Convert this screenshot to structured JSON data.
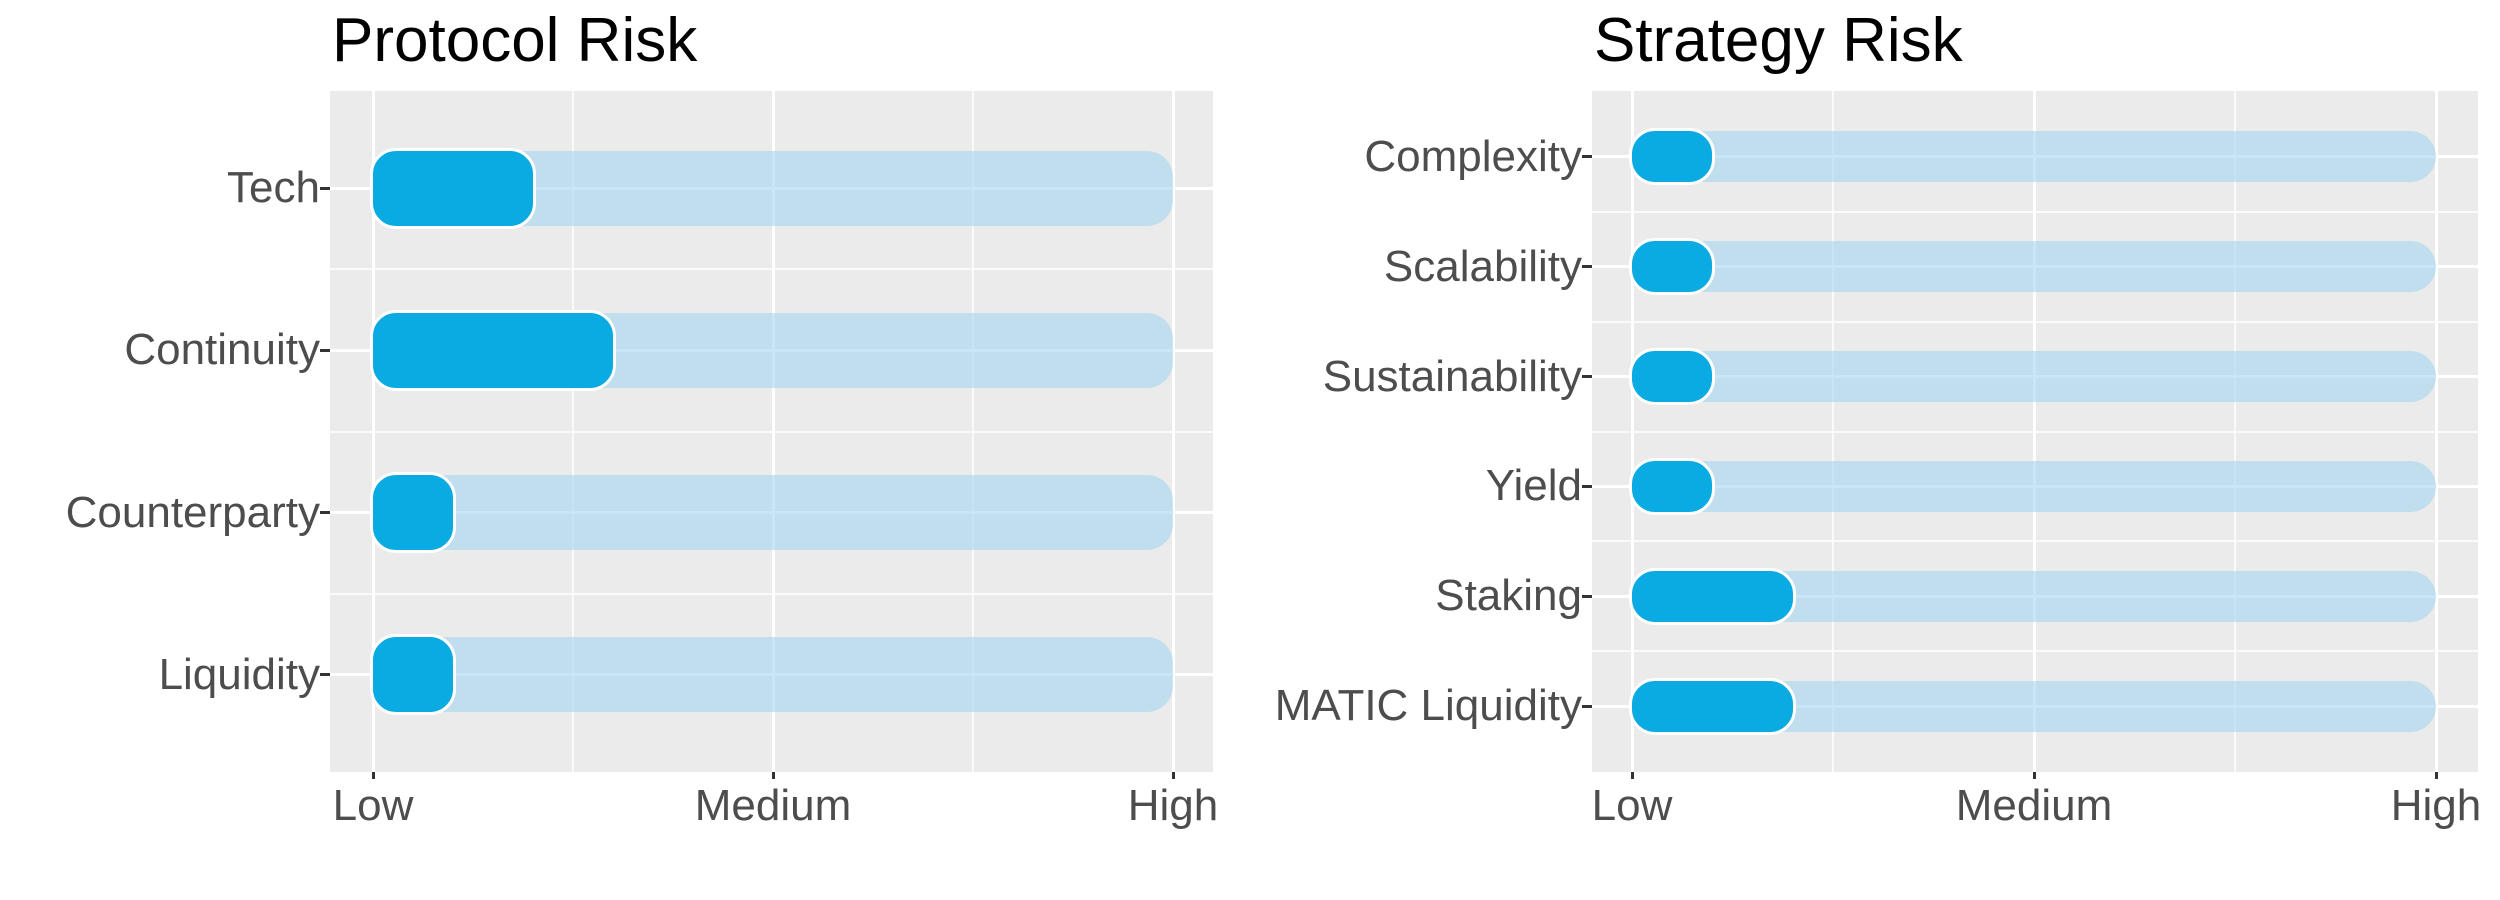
{
  "style": {
    "panel_background": "#EBEBEB",
    "grid_major_color": "#FFFFFF",
    "grid_minor_color": "rgba(255,255,255,0.75)",
    "bar_color": "#0AAAE2",
    "bar_track_color": "rgba(167,215,241,0.62)",
    "bar_track_solid_hint": "#C3E2EF",
    "label_color": "#4D4D4D",
    "title_color": "#000000",
    "tick_color": "#333333"
  },
  "chart_data": [
    {
      "type": "bar",
      "orientation": "horizontal",
      "title": "Protocol Risk",
      "categories": [
        "Tech",
        "Continuity",
        "Counterparty",
        "Liquidity"
      ],
      "values": [
        1.4,
        1.6,
        1.2,
        1.2
      ],
      "track_value": 3,
      "xlim": [
        1,
        3
      ],
      "x_ticks": [
        {
          "value": 1,
          "label": "Low"
        },
        {
          "value": 2,
          "label": "Medium"
        },
        {
          "value": 3,
          "label": "High"
        }
      ],
      "x_minor_ticks": [
        1.5,
        2.5
      ],
      "xlabel": "",
      "ylabel": "",
      "grid": true,
      "legend": false
    },
    {
      "type": "bar",
      "orientation": "horizontal",
      "title": "Strategy Risk",
      "categories": [
        "Complexity",
        "Scalability",
        "Sustainability",
        "Yield",
        "Staking",
        "MATIC Liquidity"
      ],
      "values": [
        1.2,
        1.2,
        1.2,
        1.2,
        1.4,
        1.4
      ],
      "track_value": 3,
      "xlim": [
        1,
        3
      ],
      "x_ticks": [
        {
          "value": 1,
          "label": "Low"
        },
        {
          "value": 2,
          "label": "Medium"
        },
        {
          "value": 3,
          "label": "High"
        }
      ],
      "x_minor_ticks": [
        1.5,
        2.5
      ],
      "xlabel": "",
      "ylabel": "",
      "grid": true,
      "legend": false
    }
  ]
}
